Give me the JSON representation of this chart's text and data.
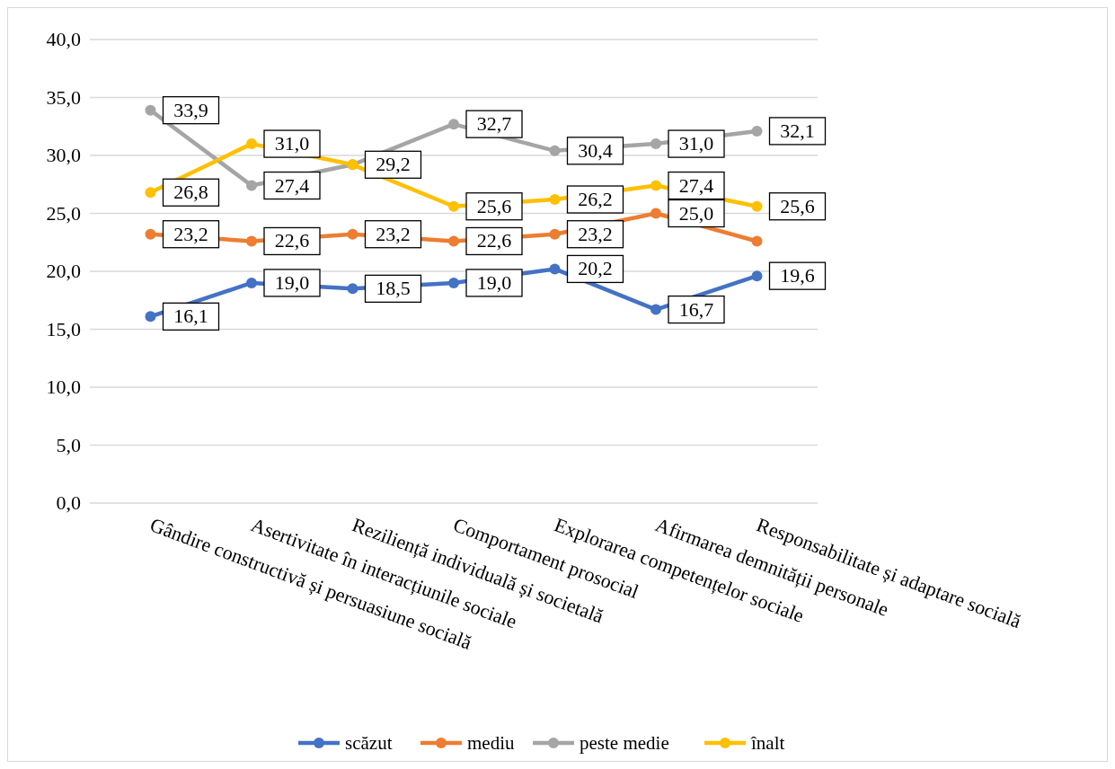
{
  "chart_data": {
    "type": "line",
    "categories": [
      "Gândire constructivă și persuasiune socială",
      "Asertivitate în interacțiunile sociale",
      "Reziliență individuală și societală",
      "Comportament prosocial",
      "Explorarea competențelor sociale",
      "Afirmarea demnității personale",
      "Responsabilitate și adaptare socială"
    ],
    "series": [
      {
        "name": "scăzut",
        "color": "#4472c4",
        "values": [
          16.1,
          19.0,
          18.5,
          19.0,
          20.2,
          16.7,
          19.6
        ],
        "value_labels": [
          "16,1",
          "19,0",
          "18,5",
          "19,0",
          "20,2",
          "16,7",
          "19,6"
        ]
      },
      {
        "name": "mediu",
        "color": "#ed7d31",
        "values": [
          23.2,
          22.6,
          23.2,
          22.6,
          23.2,
          25.0,
          22.6
        ],
        "value_labels": [
          "23,2",
          "22,6",
          "23,2",
          "22,6",
          "23,2",
          "25,0",
          null
        ]
      },
      {
        "name": "peste medie",
        "color": "#a5a5a5",
        "values": [
          33.9,
          27.4,
          29.2,
          32.7,
          30.4,
          31.0,
          32.1
        ],
        "value_labels": [
          "33,9",
          "27,4",
          null,
          "32,7",
          "30,4",
          "31,0",
          "32,1"
        ]
      },
      {
        "name": "înalt",
        "color": "#ffc000",
        "values": [
          26.8,
          31.0,
          29.2,
          25.6,
          26.2,
          27.4,
          25.6
        ],
        "value_labels": [
          "26,8",
          "31,0",
          "29,2",
          "25,6",
          "26,2",
          "27,4",
          "25,6"
        ]
      }
    ],
    "ylim": [
      0,
      40
    ],
    "yticks": [
      {
        "value": 0,
        "label": "0,0"
      },
      {
        "value": 5,
        "label": "5,0"
      },
      {
        "value": 10,
        "label": "10,0"
      },
      {
        "value": 15,
        "label": "15,0"
      },
      {
        "value": 20,
        "label": "20,0"
      },
      {
        "value": 25,
        "label": "25,0"
      },
      {
        "value": 30,
        "label": "30,0"
      },
      {
        "value": 35,
        "label": "35,0"
      },
      {
        "value": 40,
        "label": "40,0"
      }
    ],
    "grid": "y",
    "legend": "bottom",
    "marker": "circle",
    "line_style": "solid"
  }
}
